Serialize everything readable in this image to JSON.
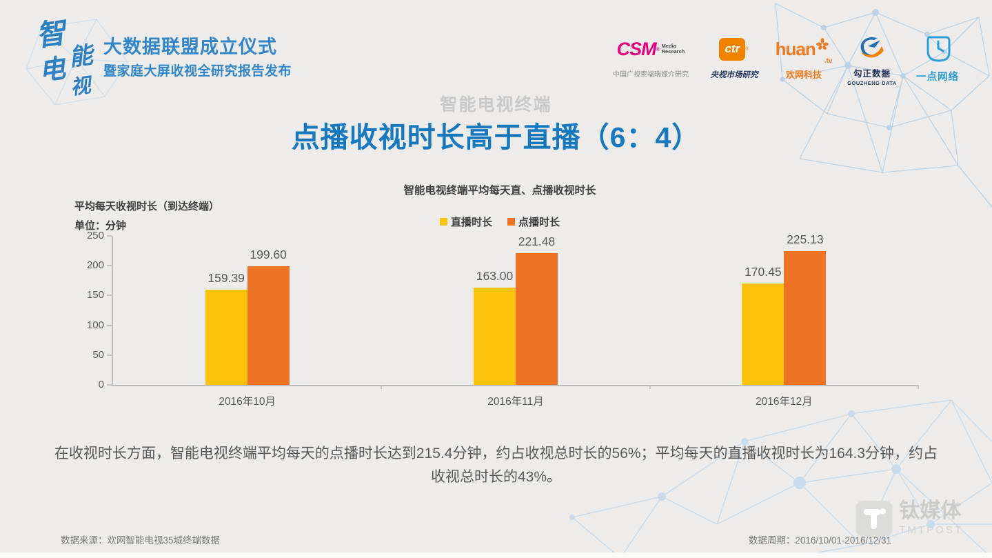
{
  "slide": {
    "kicker": "智能电视终端",
    "title": "点播收视时长高于直播（6：4）"
  },
  "header": {
    "logo_chars": [
      "智",
      "能",
      "电",
      "视"
    ],
    "event_title": "大数据联盟成立仪式",
    "event_subtitle": "暨家庭大屏收视全研究报告发布",
    "partners": [
      {
        "wordmark": "CSM",
        "registered": "®",
        "tagline_line1": "Media",
        "tagline_line2": "Research",
        "caption": "中国广视索福瑞媒介研究"
      },
      {
        "wordmark": "ctr",
        "registered": "®",
        "caption": "央视市场研究"
      },
      {
        "wordmark": "huan",
        "suffix": ".tv",
        "caption": "欢网科技"
      },
      {
        "caption": "勾正数据",
        "subcaption": "GOUZHENG DATA"
      },
      {
        "caption": "一点网络"
      }
    ]
  },
  "chart_data": {
    "type": "bar",
    "title": "智能电视终端平均每天直、点播收视时长",
    "ylabel_line1": "平均每天收视时长（到达终端）",
    "ylabel_line2": "单位：分钟",
    "categories": [
      "2016年10月",
      "2016年11月",
      "2016年12月"
    ],
    "series": [
      {
        "name": "直播时长",
        "color": "#FCC30B",
        "values": [
          159.39,
          163.0,
          170.45
        ]
      },
      {
        "name": "点播时长",
        "color": "#ED7426",
        "values": [
          199.6,
          221.48,
          225.13
        ]
      }
    ],
    "ylim": [
      0,
      250
    ],
    "yticks": [
      0,
      50,
      100,
      150,
      200,
      250
    ],
    "value_label_decimals": 2,
    "grid": false,
    "legend_position": "top-center"
  },
  "summary": "在收视时长方面，智能电视终端平均每天的点播时长达到215.4分钟，约占收视总时长的56%；平均每天的直播收视时长为164.3分钟，约占收视总时长的43%。",
  "footer": {
    "source": "数据来源：欢网智能电视35城终端数据",
    "period": "数据周期：2016/10/01-2016/12/31"
  },
  "watermark": {
    "cn": "钛媒体",
    "en": "TMTPOST"
  }
}
